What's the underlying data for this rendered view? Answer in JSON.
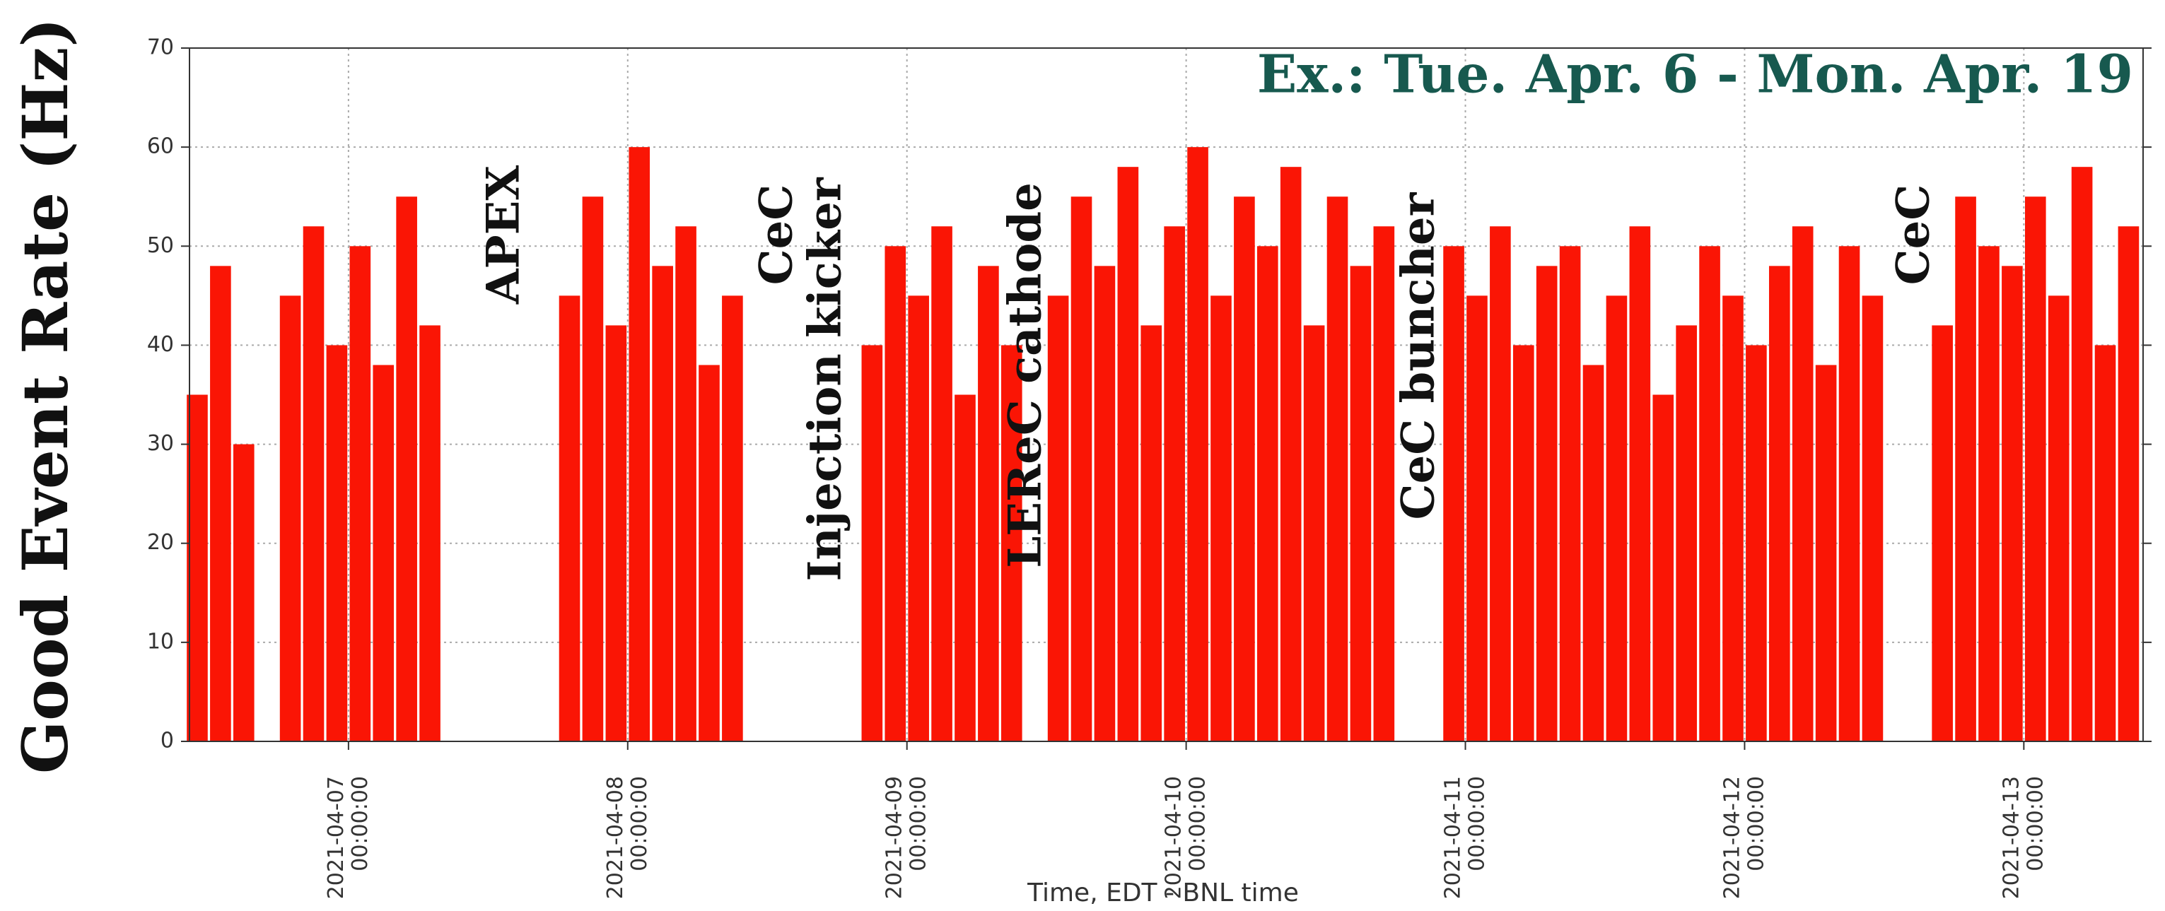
{
  "chart_data": {
    "type": "bar",
    "title": "Ex.: Tue. Apr. 6 - Mon. Apr. 19",
    "x_label": "Time, EDT - BNL time",
    "y_label": "Good Event Rate (Hz)",
    "annotations": [
      "APEX",
      "CeC",
      "Injection kicker",
      "LEReC cathode",
      "CeC buncher",
      "CeC"
    ],
    "color": "#fa1505",
    "grid": true,
    "xlim": [
      "2021-04-06 10:20:00",
      "2021-04-13 10:15:00"
    ],
    "xticks": [
      "2021-04-07 00:00:00",
      "2021-04-08 00:00:00",
      "2021-04-09 00:00:00",
      "2021-04-10 00:00:00",
      "2021-04-11 00:00:00",
      "2021-04-12 00:00:00",
      "2021-04-13 00:00:00"
    ],
    "ylim": [
      0,
      70
    ],
    "yticks": [
      0,
      10,
      20,
      30,
      40,
      50,
      60,
      70
    ],
    "x": [
      "2021-04-06 11:00:00",
      "2021-04-06 13:00:00",
      "2021-04-06 15:00:00",
      "2021-04-06 17:00:00",
      "2021-04-06 19:00:00",
      "2021-04-06 21:00:00",
      "2021-04-06 23:00:00",
      "2021-04-07 01:00:00",
      "2021-04-07 03:00:00",
      "2021-04-07 05:00:00",
      "2021-04-07 07:00:00",
      "2021-04-07 09:00:00",
      "2021-04-07 11:00:00",
      "2021-04-07 13:00:00",
      "2021-04-07 15:00:00",
      "2021-04-07 17:00:00",
      "2021-04-07 19:00:00",
      "2021-04-07 21:00:00",
      "2021-04-07 23:00:00",
      "2021-04-08 01:00:00",
      "2021-04-08 03:00:00",
      "2021-04-08 05:00:00",
      "2021-04-08 07:00:00",
      "2021-04-08 09:00:00",
      "2021-04-08 11:00:00",
      "2021-04-08 13:00:00",
      "2021-04-08 15:00:00",
      "2021-04-08 17:00:00",
      "2021-04-08 19:00:00",
      "2021-04-08 21:00:00",
      "2021-04-08 23:00:00",
      "2021-04-09 01:00:00",
      "2021-04-09 03:00:00",
      "2021-04-09 05:00:00",
      "2021-04-09 07:00:00",
      "2021-04-09 09:00:00",
      "2021-04-09 11:00:00",
      "2021-04-09 13:00:00",
      "2021-04-09 15:00:00",
      "2021-04-09 17:00:00",
      "2021-04-09 19:00:00",
      "2021-04-09 21:00:00",
      "2021-04-09 23:00:00",
      "2021-04-10 01:00:00",
      "2021-04-10 03:00:00",
      "2021-04-10 05:00:00",
      "2021-04-10 07:00:00",
      "2021-04-10 09:00:00",
      "2021-04-10 11:00:00",
      "2021-04-10 13:00:00",
      "2021-04-10 15:00:00",
      "2021-04-10 17:00:00",
      "2021-04-10 19:00:00",
      "2021-04-10 21:00:00",
      "2021-04-10 23:00:00",
      "2021-04-11 01:00:00",
      "2021-04-11 03:00:00",
      "2021-04-11 05:00:00",
      "2021-04-11 07:00:00",
      "2021-04-11 09:00:00",
      "2021-04-11 11:00:00",
      "2021-04-11 13:00:00",
      "2021-04-11 15:00:00",
      "2021-04-11 17:00:00",
      "2021-04-11 19:00:00",
      "2021-04-11 21:00:00",
      "2021-04-11 23:00:00",
      "2021-04-12 01:00:00",
      "2021-04-12 03:00:00",
      "2021-04-12 05:00:00",
      "2021-04-12 07:00:00",
      "2021-04-12 09:00:00",
      "2021-04-12 11:00:00",
      "2021-04-12 13:00:00",
      "2021-04-12 15:00:00",
      "2021-04-12 17:00:00",
      "2021-04-12 19:00:00",
      "2021-04-12 21:00:00",
      "2021-04-12 23:00:00",
      "2021-04-13 01:00:00",
      "2021-04-13 03:00:00",
      "2021-04-13 05:00:00",
      "2021-04-13 07:00:00",
      "2021-04-13 09:00:00"
    ],
    "values": [
      35,
      48,
      30,
      0,
      45,
      52,
      40,
      50,
      38,
      55,
      42,
      0,
      0,
      0,
      0,
      0,
      45,
      55,
      42,
      60,
      48,
      52,
      38,
      45,
      0,
      0,
      0,
      0,
      0,
      40,
      50,
      45,
      52,
      35,
      48,
      40,
      0,
      45,
      55,
      48,
      58,
      42,
      52,
      60,
      45,
      55,
      50,
      58,
      42,
      55,
      48,
      52,
      0,
      0,
      50,
      45,
      52,
      40,
      48,
      50,
      38,
      45,
      52,
      35,
      42,
      50,
      45,
      40,
      48,
      52,
      38,
      50,
      45,
      0,
      0,
      42,
      55,
      50,
      48,
      55,
      45,
      58,
      40,
      52
    ]
  }
}
